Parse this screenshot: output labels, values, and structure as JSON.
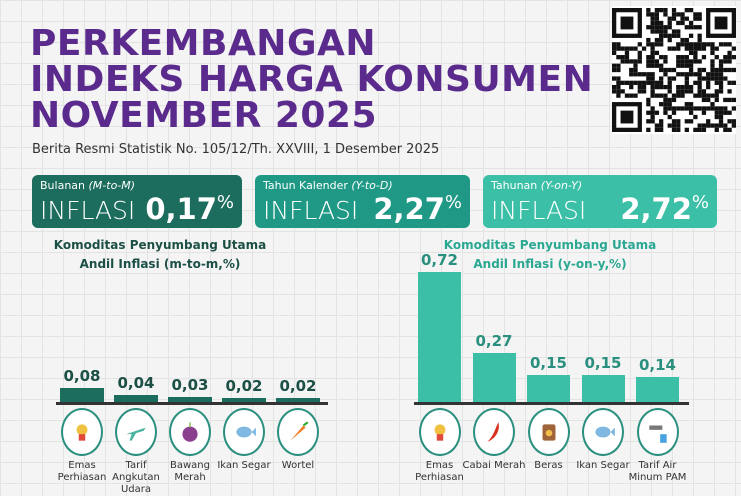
{
  "header": {
    "title_lines": [
      "PERKEMBANGAN",
      "INDEKS HARGA KONSUMEN",
      "NOVEMBER 2025"
    ],
    "subtitle": "Berita Resmi Statistik No. 105/12/Th. XXVIII, 1 Desember 2025"
  },
  "cards": [
    {
      "period": "Bulanan",
      "period_code": "(M-to-M)",
      "label": "INFLASI",
      "value": "0,17",
      "unit": "%",
      "color": "#1c6d5d"
    },
    {
      "period": "Tahun Kalender",
      "period_code": "(Y-to-D)",
      "label": "INFLASI",
      "value": "2,27",
      "unit": "%",
      "color": "#1f9985"
    },
    {
      "period": "Tahunan",
      "period_code": "(Y-on-Y)",
      "label": "INFLASI",
      "value": "2,72",
      "unit": "%",
      "color": "#3bbfa7"
    }
  ],
  "chart_data": [
    {
      "type": "bar",
      "title": "Komoditas Penyumbang Utama",
      "subtitle": "Andil Inflasi (m-to-m,%)",
      "color": "#1c6d5d",
      "categories": [
        "Emas Perhiasan",
        "Tarif Angkutan Udara",
        "Bawang Merah",
        "Ikan Segar",
        "Wortel"
      ],
      "icons": [
        "jewelry-icon",
        "airplane-icon",
        "onion-icon",
        "fish-icon",
        "carrot-icon"
      ],
      "values": [
        0.08,
        0.04,
        0.03,
        0.02,
        0.02
      ],
      "value_labels": [
        "0,08",
        "0,04",
        "0,03",
        "0,02",
        "0,02"
      ]
    },
    {
      "type": "bar",
      "title": "Komoditas Penyumbang Utama",
      "subtitle": "Andil Inflasi (y-on-y,%)",
      "color": "#3bbfa7",
      "categories": [
        "Emas Perhiasan",
        "Cabai Merah",
        "Beras",
        "Ikan Segar",
        "Tarif Air Minum PAM"
      ],
      "icons": [
        "jewelry-icon",
        "chili-icon",
        "rice-icon",
        "fish-icon",
        "water-tap-icon"
      ],
      "values": [
        0.72,
        0.27,
        0.15,
        0.15,
        0.14
      ],
      "value_labels": [
        "0,72",
        "0,27",
        "0,15",
        "0,15",
        "0,14"
      ]
    }
  ]
}
